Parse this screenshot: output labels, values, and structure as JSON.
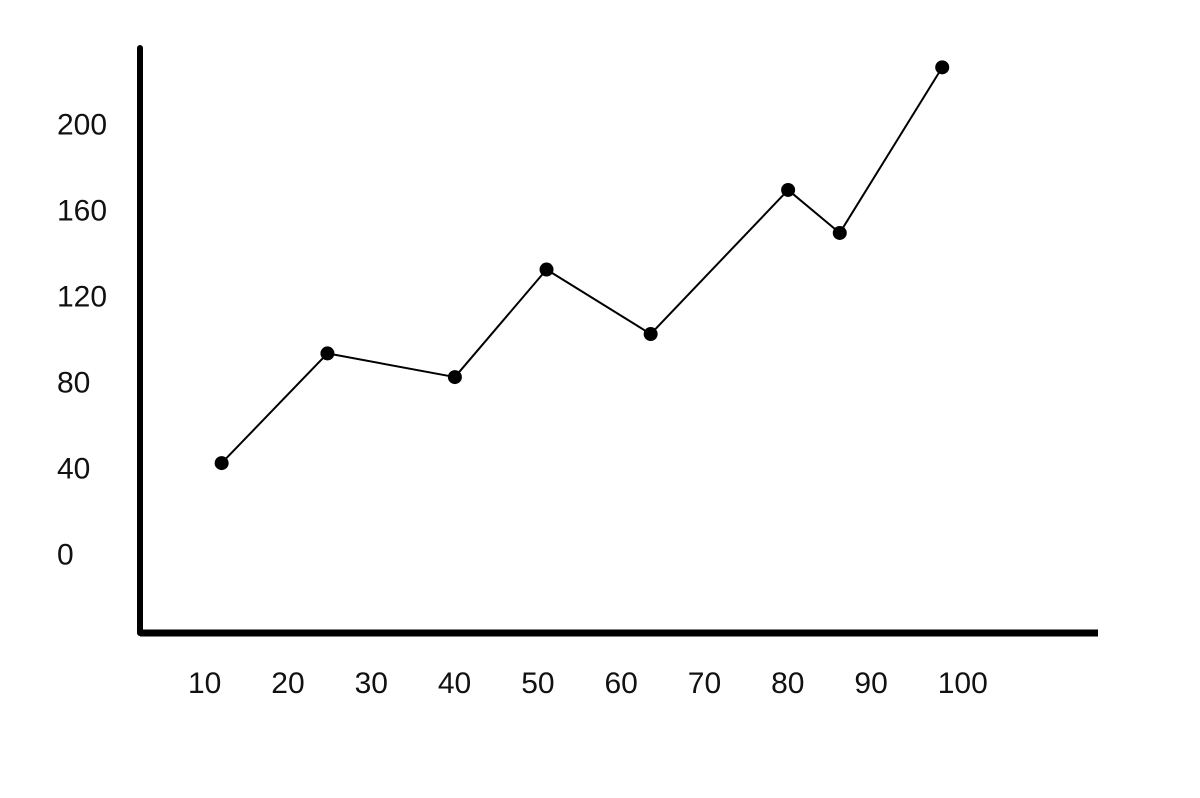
{
  "chart_data": {
    "type": "line",
    "title": "",
    "xlabel": "",
    "ylabel": "",
    "x_ticks": [
      "10",
      "20",
      "30",
      "40",
      "50",
      "60",
      "70",
      "80",
      "90",
      "100"
    ],
    "y_ticks": [
      "0",
      "40",
      "80",
      "120",
      "160",
      "200"
    ],
    "xlim": [
      1,
      116
    ],
    "ylim": [
      -37,
      235
    ],
    "grid": false,
    "legend": "none",
    "series": [
      {
        "x": [
          10.8,
          23.5,
          38.8,
          49.8,
          62.3,
          78.8,
          85.0,
          97.3
        ],
        "y": [
          42,
          93,
          82,
          132,
          102,
          169,
          149,
          226
        ]
      }
    ],
    "colors": {
      "line": "#000000",
      "axis": "#000000",
      "text": "#111111",
      "background": "#ffffff"
    }
  }
}
